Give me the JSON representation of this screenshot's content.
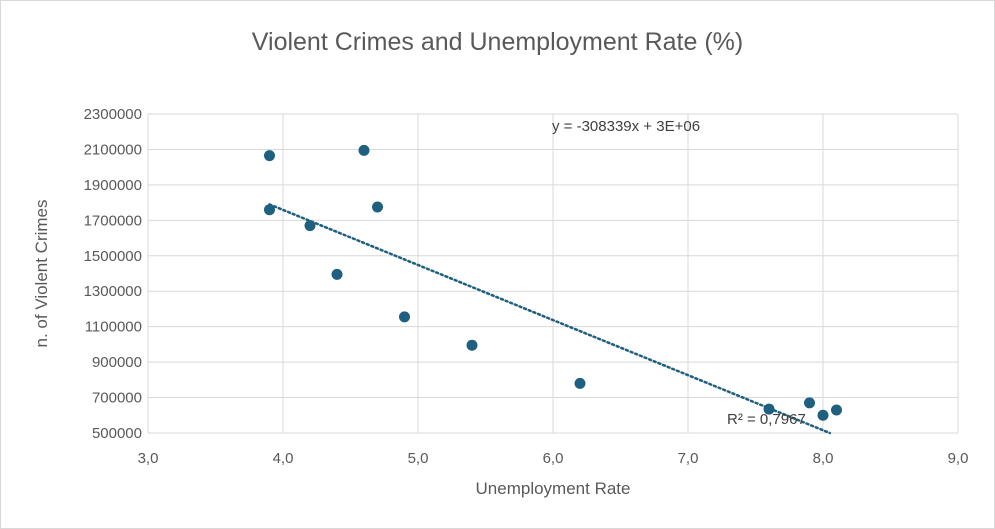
{
  "chart_data": {
    "type": "scatter",
    "title": "Violent Crimes and Unemployment Rate (%)",
    "xlabel": "Unemployment Rate",
    "ylabel": "n. of Violent Crimes",
    "xlim": [
      3.0,
      9.0
    ],
    "ylim": [
      500000,
      2300000
    ],
    "xticks": [
      "3,0",
      "4,0",
      "5,0",
      "6,0",
      "7,0",
      "8,0",
      "9,0"
    ],
    "yticks": [
      "500000",
      "700000",
      "900000",
      "1100000",
      "1300000",
      "1500000",
      "1700000",
      "1900000",
      "2100000",
      "2300000"
    ],
    "grid": true,
    "series": [
      {
        "color": "#1f5f7f",
        "points": [
          {
            "x": 3.9,
            "y": 2065000
          },
          {
            "x": 3.9,
            "y": 1760000
          },
          {
            "x": 4.2,
            "y": 1670000
          },
          {
            "x": 4.4,
            "y": 1395000
          },
          {
            "x": 4.6,
            "y": 2095000
          },
          {
            "x": 4.7,
            "y": 1775000
          },
          {
            "x": 4.9,
            "y": 1155000
          },
          {
            "x": 5.4,
            "y": 995000
          },
          {
            "x": 6.2,
            "y": 780000
          },
          {
            "x": 7.6,
            "y": 635000
          },
          {
            "x": 7.9,
            "y": 670000
          },
          {
            "x": 8.0,
            "y": 600000
          },
          {
            "x": 8.1,
            "y": 630000
          }
        ]
      }
    ],
    "trendline": {
      "style": "dotted",
      "color": "#1f5f7f",
      "x_start": 3.9,
      "y_start": 1790000,
      "x_end": 8.05,
      "y_end": 500000,
      "equation": "y = -308339x + 3E+06",
      "r_squared": "R² = 0,7967"
    }
  }
}
